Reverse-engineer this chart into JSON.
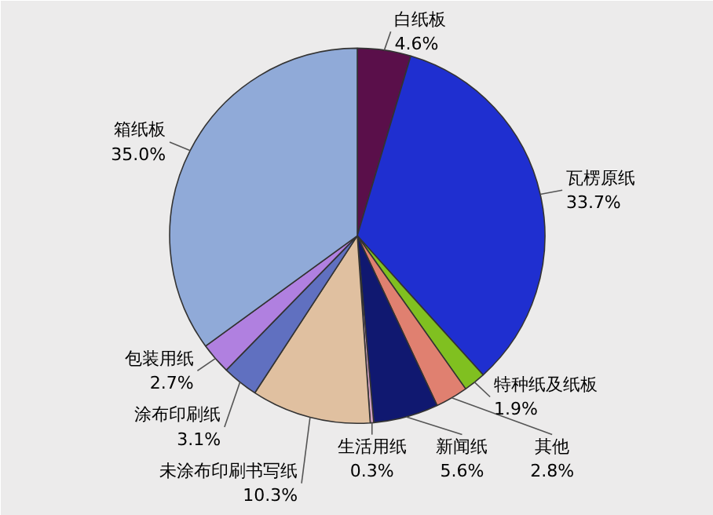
{
  "chart_data": {
    "type": "pie",
    "categories": [
      "白纸板",
      "瓦楞原纸",
      "特种纸及纸板",
      "其他",
      "新闻纸",
      "生活用纸",
      "未涂布印刷书写纸",
      "涂布印刷纸",
      "包装用纸",
      "箱纸板"
    ],
    "values": [
      4.6,
      33.7,
      1.9,
      2.8,
      5.6,
      0.3,
      10.3,
      3.1,
      2.7,
      35.0
    ],
    "colors": [
      "#5a0f4a",
      "#1f2fd0",
      "#80c020",
      "#e08070",
      "#101870",
      "#d0a0c0",
      "#e0c0a0",
      "#6070c0",
      "#b080e0",
      "#90aad8"
    ],
    "value_labels": [
      "4.6%",
      "33.7%",
      "1.9%",
      "2.8%",
      "5.6%",
      "0.3%",
      "10.3%",
      "3.1%",
      "2.7%",
      "35.0%"
    ]
  }
}
